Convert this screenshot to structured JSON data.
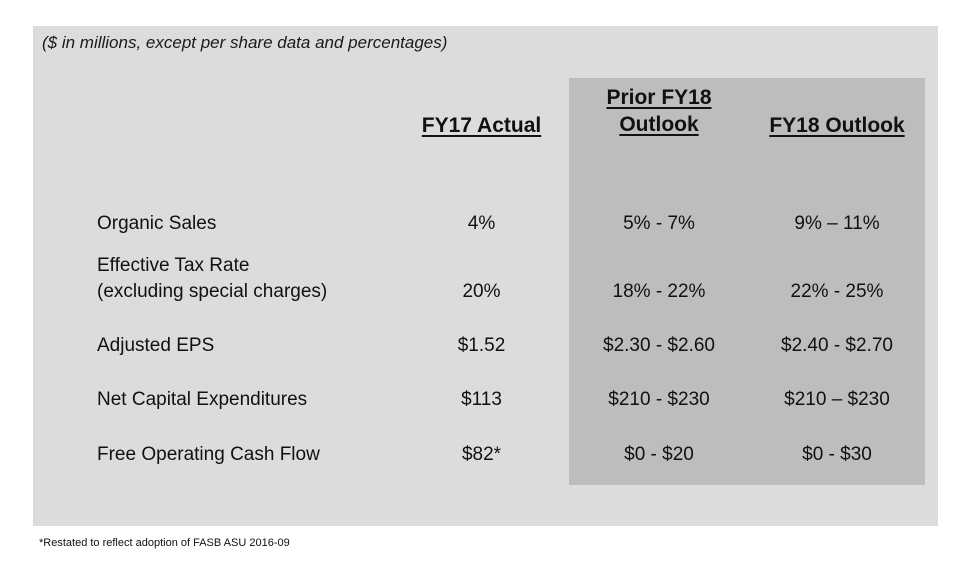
{
  "subtitle": "($ in millions, except per share data and percentages)",
  "columns": {
    "fy17": "FY17 Actual",
    "prior_line1": "Prior FY18",
    "prior_line2": "Outlook",
    "fy18": "FY18 Outlook"
  },
  "rows": [
    {
      "label": "Organic Sales",
      "fy17": "4%",
      "prior": "5% - 7%",
      "fy18": "9% – 11%"
    },
    {
      "label_line1": "Effective Tax Rate",
      "label_line2": "(excluding special charges)",
      "fy17": "20%",
      "prior": "18% - 22%",
      "fy18": "22% - 25%"
    },
    {
      "label": "Adjusted EPS",
      "fy17": "$1.52",
      "prior": "$2.30 - $2.60",
      "fy18": "$2.40 - $2.70"
    },
    {
      "label": "Net Capital Expenditures",
      "fy17": "$113",
      "prior": "$210 - $230",
      "fy18": "$210 – $230"
    },
    {
      "label": "Free Operating Cash Flow",
      "fy17": "$82*",
      "prior": "$0 - $20",
      "fy18": "$0 - $30"
    }
  ],
  "footnote": "*Restated to reflect adoption of FASB ASU 2016-09"
}
